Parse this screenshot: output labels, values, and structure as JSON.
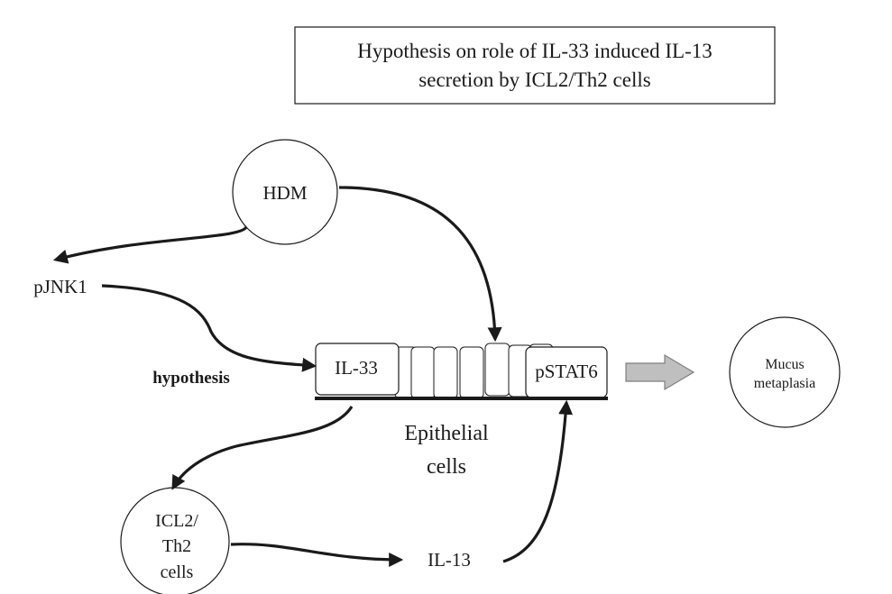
{
  "title": {
    "line1": "Hypothesis on role of IL-33 induced IL-13",
    "line2": "secretion by ICL2/Th2 cells"
  },
  "nodes": {
    "hdm": "HDM",
    "pjnk1": "pJNK1",
    "hypothesis": "hypothesis",
    "il33": "IL-33",
    "pstat6": "pSTAT6",
    "epithelial_line1": "Epithelial",
    "epithelial_line2": "cells",
    "icl2_line1": "ICL2/",
    "icl2_line2": "Th2",
    "icl2_line3": "cells",
    "il13": "IL-13",
    "mucus_line1": "Mucus",
    "mucus_line2": "metaplasia"
  },
  "colors": {
    "stroke": "#1a1a1a",
    "arrow_fill": "#bfbfbf",
    "arrow_stroke": "#7f7f7f"
  }
}
